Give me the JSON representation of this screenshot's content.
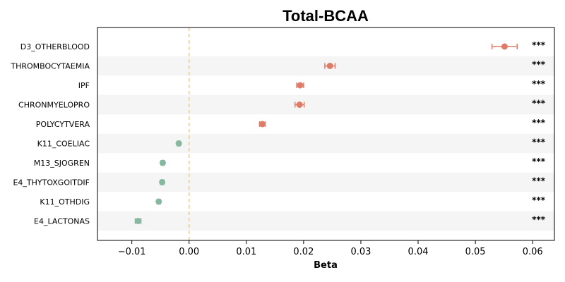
{
  "chart_data": {
    "type": "scatter",
    "title": "Total-BCAA",
    "xlabel": "Beta",
    "ylabel": "",
    "xlim": [
      -0.016,
      0.0638
    ],
    "xticks": [
      -0.01,
      0.0,
      0.01,
      0.02,
      0.03,
      0.04,
      0.05,
      0.06
    ],
    "xtick_labels": [
      "−0.01",
      "0.00",
      "0.01",
      "0.02",
      "0.03",
      "0.04",
      "0.05",
      "0.06"
    ],
    "reference_line": 0.0,
    "grid": false,
    "categories": [
      "D3_OTHERBLOOD",
      "THROMBOCYTAEMIA",
      "IPF",
      "CHRONMYELOPRO",
      "POLYCYTVERA",
      "K11_COELIAC",
      "M13_SJOGREN",
      "E4_THYTOXGOITDIF",
      "K11_OTHDIG",
      "E4_LACTONAS"
    ],
    "beta": [
      0.0551,
      0.0246,
      0.0194,
      0.0193,
      0.0128,
      -0.0018,
      -0.0046,
      -0.0047,
      -0.0053,
      -0.0089
    ],
    "ci_low": [
      0.0529,
      0.0237,
      0.0188,
      0.0185,
      0.0123,
      -0.0021,
      -0.0049,
      -0.005,
      -0.0056,
      -0.0094
    ],
    "ci_high": [
      0.0573,
      0.0255,
      0.02,
      0.0201,
      0.0133,
      -0.0015,
      -0.0043,
      -0.0044,
      -0.005,
      -0.0084
    ],
    "significance": [
      "***",
      "***",
      "***",
      "***",
      "***",
      "***",
      "***",
      "***",
      "***",
      "***"
    ],
    "colors": {
      "positive": "#E07B67",
      "negative": "#86B8A0",
      "reference_line": "#F5C97A",
      "band": "#F5F5F5"
    }
  }
}
